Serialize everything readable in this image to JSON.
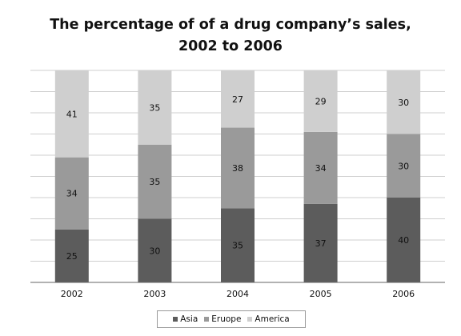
{
  "chart_data": {
    "type": "bar",
    "stacked": true,
    "title": [
      "The percentage of of a drug company’s sales,",
      "2002 to 2006"
    ],
    "categories": [
      "2002",
      "2003",
      "2004",
      "2005",
      "2006"
    ],
    "series": [
      {
        "name": "Asia",
        "values": [
          25,
          30,
          35,
          37,
          40
        ],
        "color": "#5c5c5c"
      },
      {
        "name": "Eruope",
        "values": [
          34,
          35,
          38,
          34,
          30
        ],
        "color": "#9a9a9a"
      },
      {
        "name": "America",
        "values": [
          41,
          35,
          27,
          29,
          30
        ],
        "color": "#cfcfcf"
      }
    ],
    "ylim": [
      0,
      100
    ],
    "grid": true,
    "legend_position": "bottom",
    "data_labels": true
  }
}
